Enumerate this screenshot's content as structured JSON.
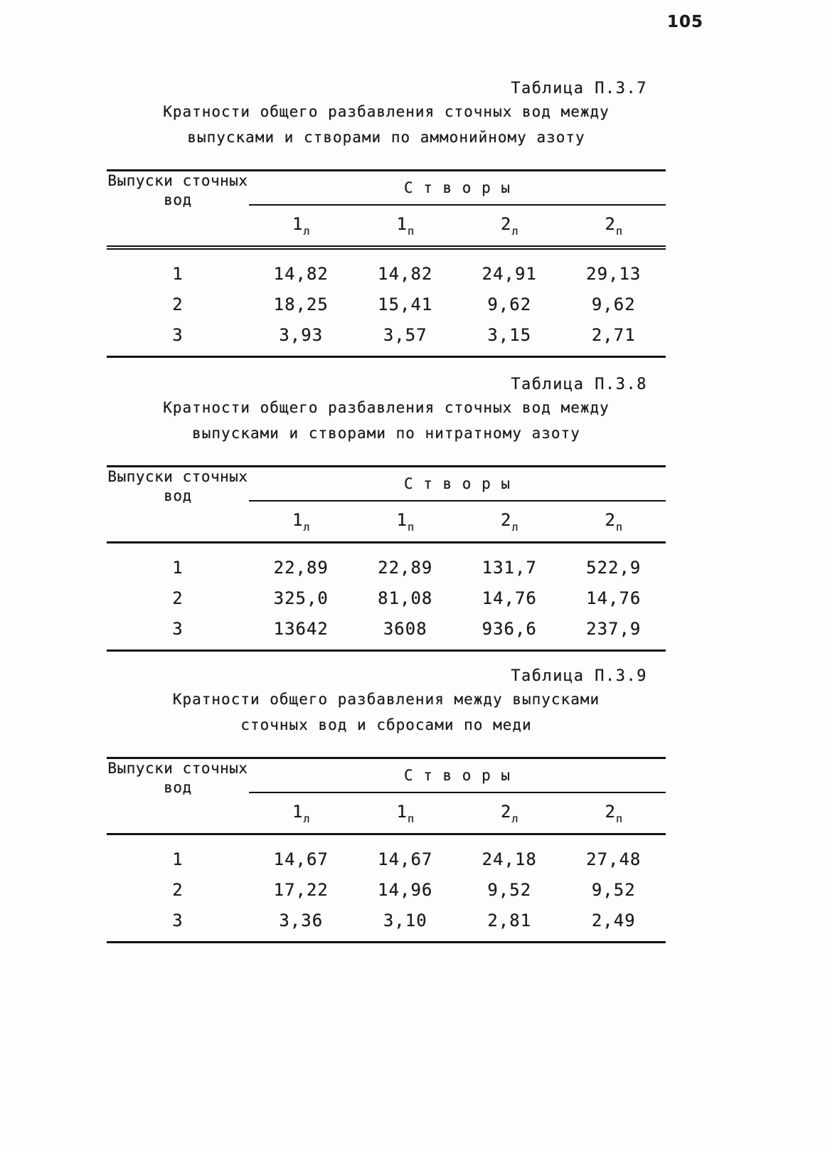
{
  "page": {
    "number": "105"
  },
  "colors": {
    "ink": "#1b1b1b",
    "paper": "#fdfdfb",
    "rule": "#121212"
  },
  "tables": [
    {
      "caption": "Таблица П.3.7",
      "title_line1": "Кратности общего разбавления сточных вод между",
      "title_line2": "выпусками и створами по аммонийному азоту",
      "header": {
        "col1_line1": "Выпуски сточных",
        "col1_line2": "вод",
        "group": "С т в о р ы"
      },
      "columns": [
        {
          "main": "1",
          "sub": "л"
        },
        {
          "main": "1",
          "sub": "п"
        },
        {
          "main": "2",
          "sub": "л"
        },
        {
          "main": "2",
          "sub": "п"
        }
      ],
      "rows": [
        {
          "label": "1",
          "values": [
            "14,82",
            "14,82",
            "24,91",
            "29,13"
          ]
        },
        {
          "label": "2",
          "values": [
            "18,25",
            "15,41",
            "9,62",
            "9,62"
          ]
        },
        {
          "label": "3",
          "values": [
            "3,93",
            "3,57",
            "3,15",
            "2,71"
          ]
        }
      ]
    },
    {
      "caption": "Таблица П.3.8",
      "title_line1": "Кратности общего разбавления сточных вод между",
      "title_line2": "выпусками и створами по нитратному азоту",
      "header": {
        "col1_line1": "Выпуски сточных",
        "col1_line2": "вод",
        "group": "С т в о р ы"
      },
      "columns": [
        {
          "main": "1",
          "sub": "л"
        },
        {
          "main": "1",
          "sub": "п"
        },
        {
          "main": "2",
          "sub": "л"
        },
        {
          "main": "2",
          "sub": "п"
        }
      ],
      "rows": [
        {
          "label": "1",
          "values": [
            "22,89",
            "22,89",
            "131,7",
            "522,9"
          ]
        },
        {
          "label": "2",
          "values": [
            "325,0",
            "81,08",
            "14,76",
            "14,76"
          ]
        },
        {
          "label": "3",
          "values": [
            "13642",
            "3608",
            "936,6",
            "237,9"
          ]
        }
      ]
    },
    {
      "caption": "Таблица П.3.9",
      "title_line1": "Кратности общего разбавления между выпусками",
      "title_line2": "сточных вод и сбросами по меди",
      "header": {
        "col1_line1": "Выпуски сточных",
        "col1_line2": "вод",
        "group": "С т в о р ы"
      },
      "columns": [
        {
          "main": "1",
          "sub": "л"
        },
        {
          "main": "1",
          "sub": "п"
        },
        {
          "main": "2",
          "sub": "л"
        },
        {
          "main": "2",
          "sub": "п"
        }
      ],
      "rows": [
        {
          "label": "1",
          "values": [
            "14,67",
            "14,67",
            "24,18",
            "27,48"
          ]
        },
        {
          "label": "2",
          "values": [
            "17,22",
            "14,96",
            "9,52",
            "9,52"
          ]
        },
        {
          "label": "3",
          "values": [
            "3,36",
            "3,10",
            "2,81",
            "2,49"
          ]
        }
      ]
    }
  ]
}
